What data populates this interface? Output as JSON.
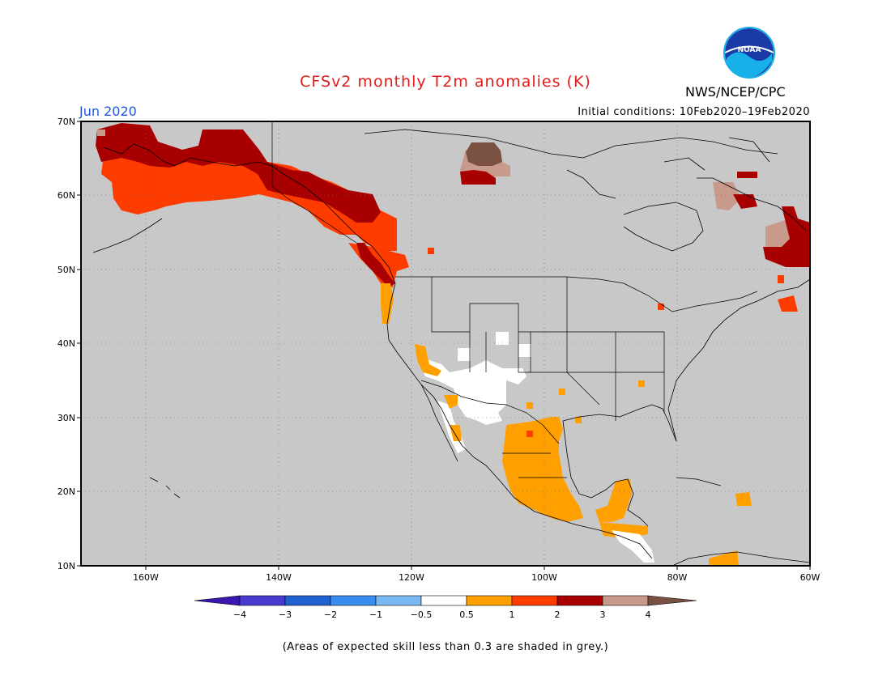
{
  "title": "CFSv2 monthly T2m anomalies (K)",
  "period": "Jun 2020",
  "initial_conditions": "Initial conditions: 10Feb2020–19Feb2020",
  "agency": "NWS/NCEP/CPC",
  "logo_text": "NOAA",
  "footnote": "(Areas of expected skill less than 0.3 are shaded in grey.)",
  "map": {
    "background_color": "#c8c8c8",
    "lat_labels": [
      "70N",
      "60N",
      "50N",
      "40N",
      "30N",
      "20N",
      "10N"
    ],
    "lon_labels": [
      "160W",
      "140W",
      "120W",
      "100W",
      "80W",
      "60W"
    ]
  },
  "colorbar": {
    "labels": [
      "−4",
      "−3",
      "−2",
      "−1",
      "−0.5",
      "0.5",
      "1",
      "2",
      "3",
      "4"
    ],
    "colors": [
      "#3a16b0",
      "#4a3ad0",
      "#2060d0",
      "#3b8cf0",
      "#7ab8f2",
      "#ffffff",
      "#ffa000",
      "#ff3c00",
      "#a80000",
      "#c89a8c",
      "#7a5040"
    ]
  },
  "anomaly_colors": {
    "white": "#ffffff",
    "orange": "#ffa000",
    "red": "#ff3c00",
    "darkred": "#a80000",
    "pink": "#c89a8c",
    "brown": "#7a5040"
  }
}
